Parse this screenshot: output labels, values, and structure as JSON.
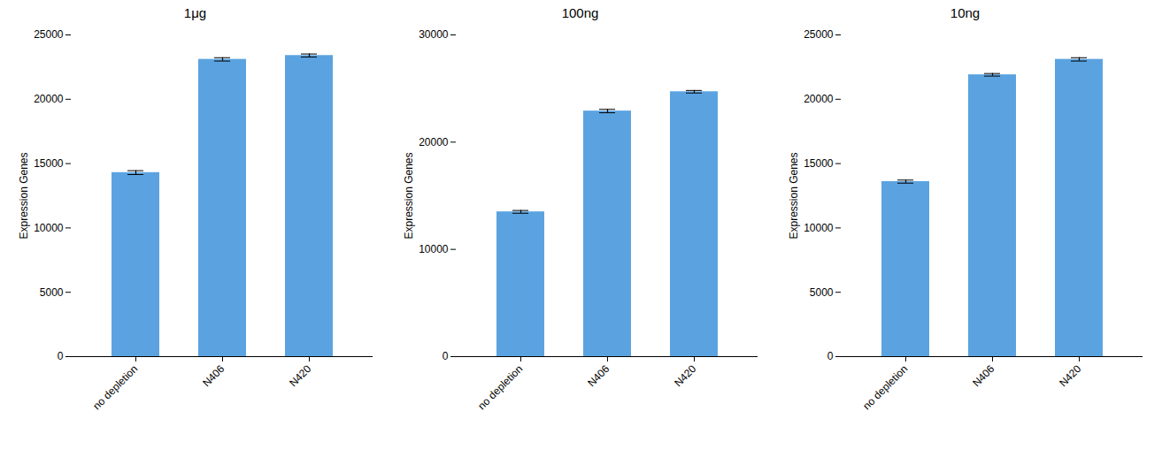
{
  "chart_data": [
    {
      "type": "bar",
      "title": "1μg",
      "ylabel": "Expression Genes",
      "categories": [
        "no depletion",
        "N406",
        "N420"
      ],
      "values": [
        14300,
        23100,
        23400
      ],
      "errors": [
        150,
        130,
        120
      ],
      "color": "#5ba3e0",
      "ylim": [
        0,
        25000
      ],
      "yticks": [
        0,
        5000,
        10000,
        15000,
        20000,
        25000
      ],
      "grid": false
    },
    {
      "type": "bar",
      "title": "100ng",
      "ylabel": "Expression Genes",
      "categories": [
        "no depletion",
        "N406",
        "N420"
      ],
      "values": [
        13500,
        22900,
        24700
      ],
      "errors": [
        130,
        160,
        120
      ],
      "color": "#5ba3e0",
      "ylim": [
        0,
        30000
      ],
      "yticks": [
        0,
        10000,
        20000,
        30000
      ],
      "grid": false
    },
    {
      "type": "bar",
      "title": "10ng",
      "ylabel": "Expression Genes",
      "categories": [
        "no depletion",
        "N406",
        "N420"
      ],
      "values": [
        13600,
        21900,
        23100
      ],
      "errors": [
        120,
        100,
        130
      ],
      "color": "#5ba3e0",
      "ylim": [
        0,
        25000
      ],
      "yticks": [
        0,
        5000,
        10000,
        15000,
        20000,
        25000
      ],
      "grid": false
    }
  ]
}
